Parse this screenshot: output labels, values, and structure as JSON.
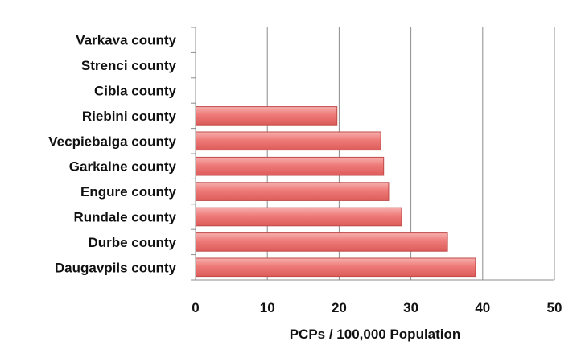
{
  "chart_data": {
    "type": "bar",
    "orientation": "horizontal",
    "categories": [
      "Varkava county",
      "Strenci county",
      "Cibla county",
      "Riebini county",
      "Vecpiebalga county",
      "Garkalne county",
      "Engure county",
      "Rundale county",
      "Durbe county",
      "Daugavpils county"
    ],
    "values": [
      0,
      0,
      0,
      19.7,
      25.8,
      26.2,
      26.9,
      28.7,
      35.1,
      39.0
    ],
    "xlabel": "PCPs / 100,000 Population",
    "ylabel": "",
    "title": "",
    "xlim": [
      0,
      50
    ],
    "xticks": [
      "0",
      "10",
      "20",
      "30",
      "40",
      "50"
    ],
    "grid": "vertical",
    "legend": "none",
    "bar_color": "#ee7a78"
  }
}
